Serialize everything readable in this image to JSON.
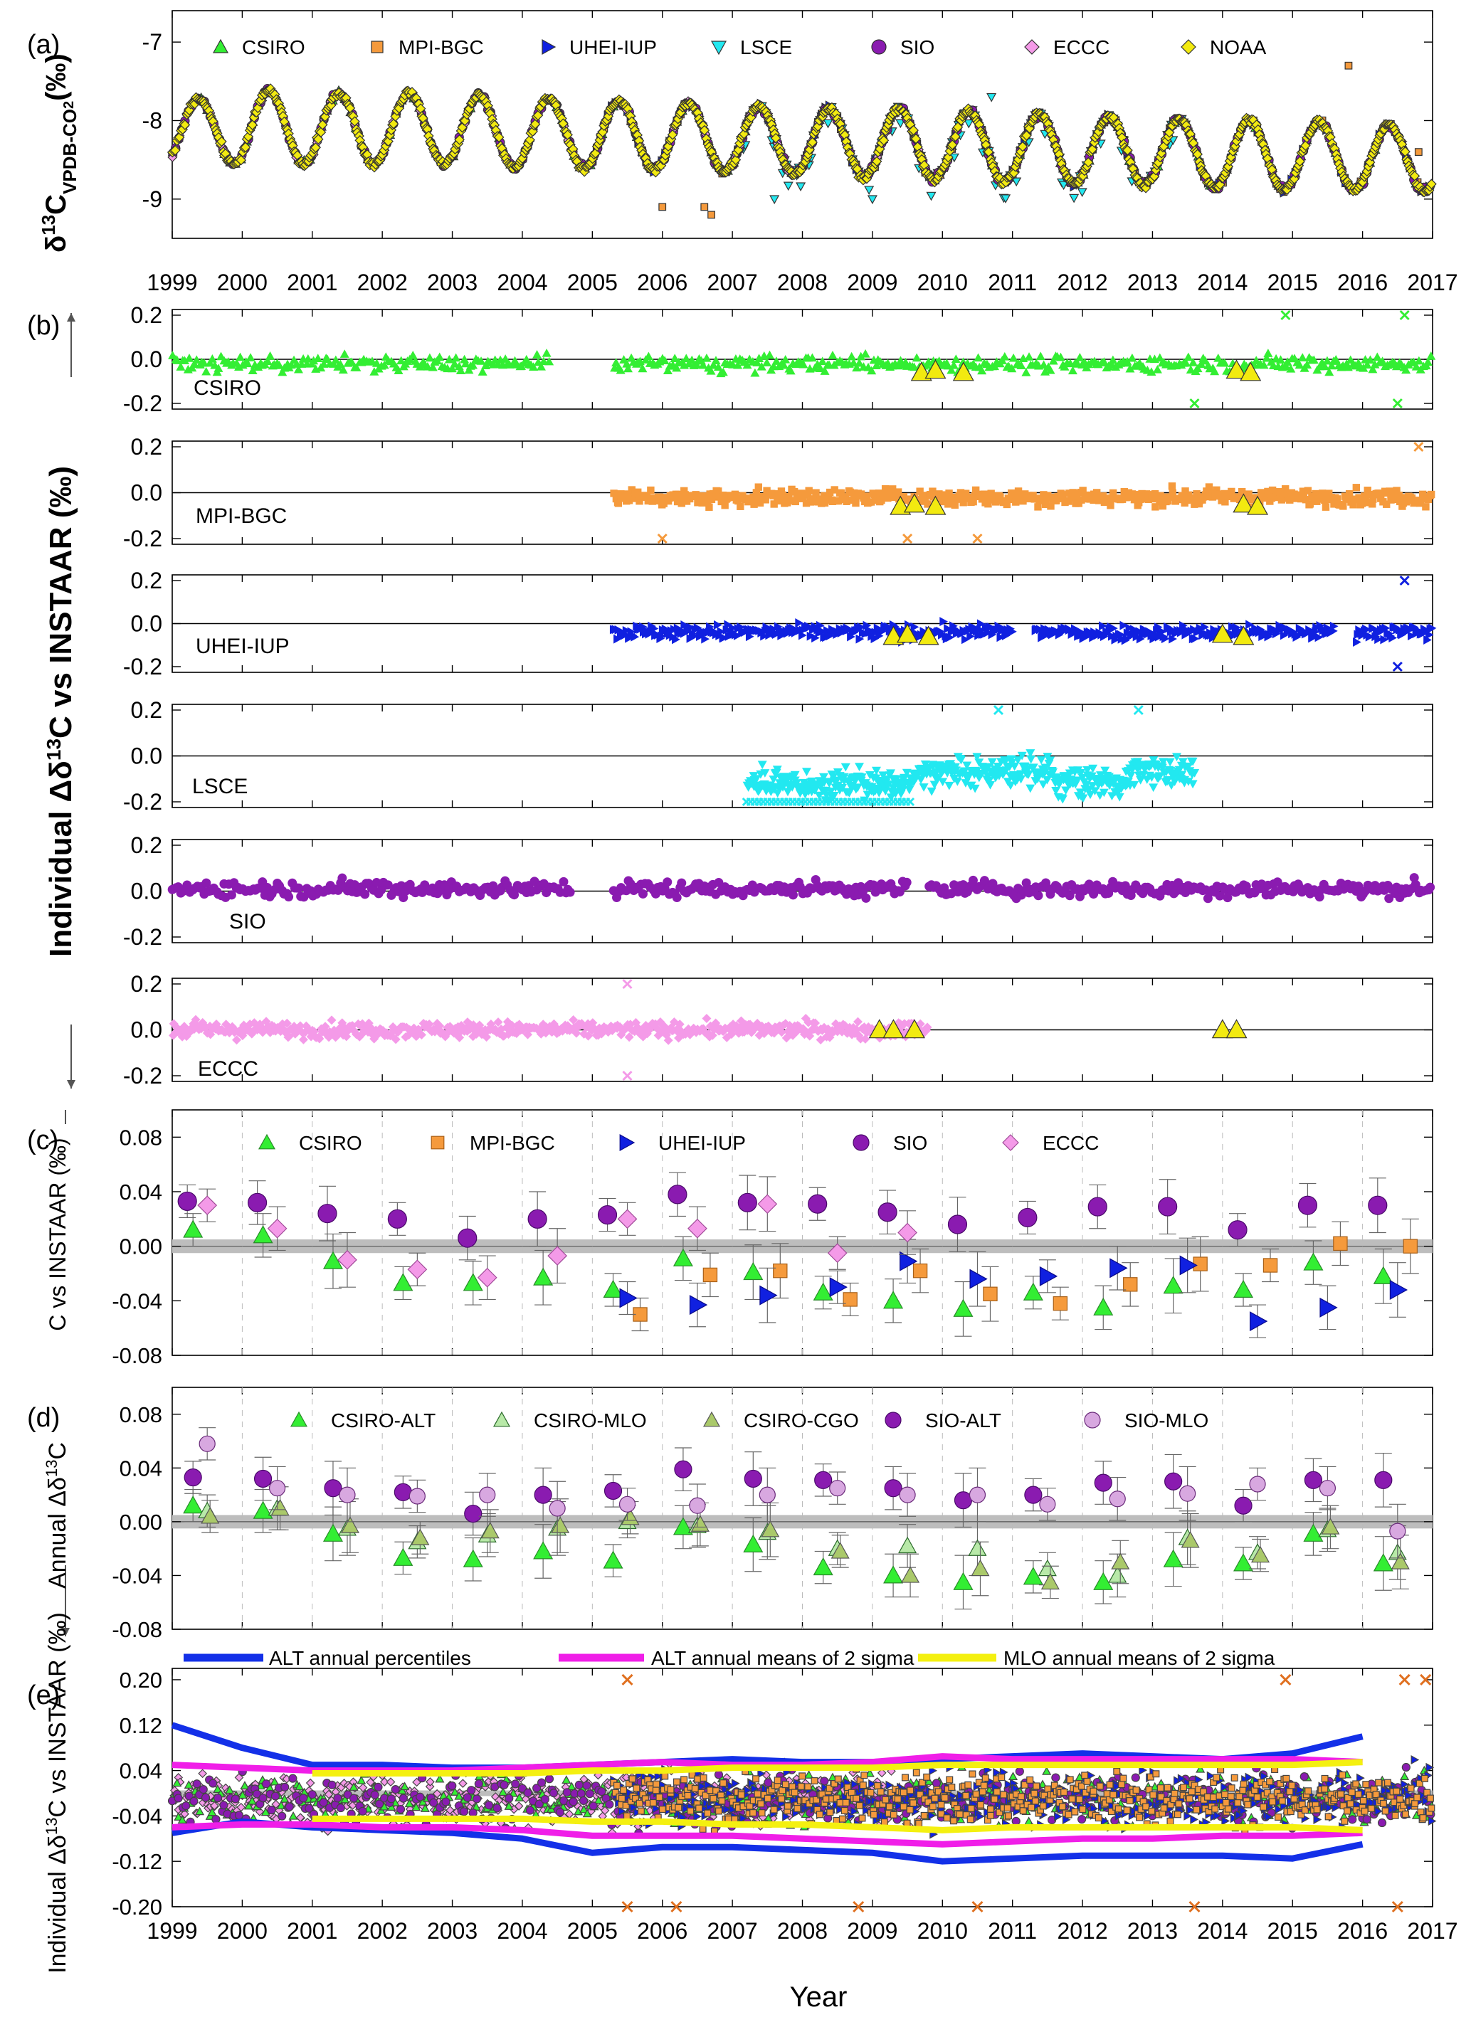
{
  "figure": {
    "year_ticks": [
      "1999",
      "2000",
      "2001",
      "2002",
      "2003",
      "2004",
      "2005",
      "2006",
      "2007",
      "2008",
      "2009",
      "2010",
      "2011",
      "2012",
      "2013",
      "2014",
      "2015",
      "2016",
      "2017"
    ],
    "x_label": "Year",
    "colors": {
      "CSIRO": "#33ee33",
      "MPI-BGC": "#f59a3c",
      "UHEI-IUP": "#1020e0",
      "LSCE": "#22e8f0",
      "SIO": "#8a1bb0",
      "ECCC": "#f49ae8",
      "NOAA": "#f2ea10",
      "INSTAAR": "#f2ea10",
      "ALT_percentiles": "#1330e8",
      "ALT_2sigma": "#f01ee8",
      "MLO_2sigma": "#f4f010",
      "band": "#bdbdbd"
    }
  },
  "panel_a": {
    "label": "(a)",
    "ylabel_main": "δ",
    "ylabel_sup": "13",
    "ylabel_C": "C",
    "ylabel_sub": "VPDB-CO",
    "ylabel_sub2": "2",
    "ylabel_unit": "(‰)",
    "legend": [
      "CSIRO",
      "MPI-BGC",
      "UHEI-IUP",
      "LSCE",
      "SIO",
      "ECCC",
      "NOAA"
    ],
    "y_ticks": [
      "-7",
      "-8",
      "-9"
    ]
  },
  "panel_b": {
    "label": "(b)",
    "ylabel": "Individual Δδ13C vs INSTAAR (‰)",
    "ylabel_pre": "Individual Δδ",
    "ylabel_sup": "13",
    "ylabel_post": "C vs INSTAAR (‰)",
    "subpanels": [
      {
        "name": "CSIRO",
        "y_ticks": [
          "0.2",
          "0.0",
          "-0.2"
        ]
      },
      {
        "name": "MPI-BGC",
        "y_ticks": [
          "0.2",
          "0.0",
          "-0.2"
        ]
      },
      {
        "name": "UHEI-IUP",
        "y_ticks": [
          "0.2",
          "0.0",
          "-0.2"
        ]
      },
      {
        "name": "LSCE",
        "y_ticks": [
          "0.2",
          "0.0",
          "-0.2"
        ]
      },
      {
        "name": "SIO",
        "y_ticks": [
          "0.2",
          "0.0",
          "-0.2"
        ]
      },
      {
        "name": "ECCC",
        "y_ticks": [
          "0.2",
          "0.0",
          "-0.2"
        ]
      }
    ]
  },
  "panel_c": {
    "label": "(c)",
    "ylabel": "Annual Δδ13C vs INSTAAR (‰)",
    "ylabel_post": "C vs INSTAAR (‰)",
    "legend": [
      "CSIRO",
      "MPI-BGC",
      "UHEI-IUP",
      "SIO",
      "ECCC"
    ],
    "y_ticks": [
      "0.08",
      "0.04",
      "0.00",
      "-0.04",
      "-0.08"
    ]
  },
  "panel_d": {
    "label": "(d)",
    "ylabel_pre": "Annual Δδ",
    "ylabel_sup": "13",
    "ylabel_post": "C",
    "legend": [
      "CSIRO-ALT",
      "CSIRO-MLO",
      "CSIRO-CGO",
      "SIO-ALT",
      "SIO-MLO"
    ],
    "y_ticks": [
      "0.08",
      "0.04",
      "0.00",
      "-0.04",
      "-0.08"
    ]
  },
  "panel_e": {
    "label": "(e)",
    "ylabel_pre": "Individual Δδ",
    "ylabel_sup": "13",
    "ylabel_post": "C vs INSTAAR (‰)",
    "legend": [
      "ALT annual percentiles",
      "ALT annual means of 2 sigma",
      "MLO annual means of 2 sigma"
    ],
    "y_ticks": [
      "0.20",
      "0.12",
      "0.04",
      "-0.04",
      "-0.12",
      "-0.20"
    ]
  },
  "chart_data": [
    {
      "type": "scatter",
      "panel": "a",
      "ylim": [
        -9.5,
        -6.6
      ],
      "xlim": [
        1999,
        2017
      ],
      "series_note": "seasonal cycle, annual minimum near late summer; values approximate",
      "series": [
        {
          "name": "NOAA",
          "seasonal_max": [
            -7.72,
            -7.62,
            -7.65,
            -7.65,
            -7.68,
            -7.72,
            -7.75,
            -7.78,
            -7.82,
            -7.85,
            -7.85,
            -7.88,
            -7.92,
            -7.95,
            -7.98,
            -8.0,
            -8.02,
            -8.05
          ],
          "seasonal_min": [
            -8.55,
            -8.55,
            -8.55,
            -8.55,
            -8.6,
            -8.6,
            -8.62,
            -8.65,
            -8.68,
            -8.72,
            -8.75,
            -8.78,
            -8.8,
            -8.82,
            -8.85,
            -8.88,
            -8.88,
            -8.9
          ]
        }
      ]
    },
    {
      "type": "scatter",
      "panel": "c",
      "x": [
        1999.5,
        2000.5,
        2001.5,
        2002.5,
        2003.5,
        2004.5,
        2005.5,
        2006.5,
        2007.5,
        2008.5,
        2009.5,
        2010.5,
        2011.5,
        2012.5,
        2013.5,
        2014.5,
        2015.5,
        2016.5
      ],
      "ylim": [
        -0.08,
        0.1
      ],
      "series": [
        {
          "name": "CSIRO",
          "values": [
            0.012,
            0.008,
            -0.011,
            -0.027,
            -0.027,
            -0.023,
            -0.032,
            -0.009,
            -0.019,
            -0.034,
            -0.04,
            -0.046,
            -0.034,
            -0.045,
            -0.029,
            -0.032,
            -0.012,
            -0.022
          ]
        },
        {
          "name": "MPI-BGC",
          "values": [
            null,
            null,
            null,
            null,
            null,
            null,
            -0.05,
            -0.021,
            -0.018,
            -0.039,
            -0.018,
            -0.035,
            -0.042,
            -0.028,
            -0.013,
            -0.014,
            0.002,
            0.0
          ]
        },
        {
          "name": "UHEI-IUP",
          "values": [
            null,
            null,
            null,
            null,
            null,
            null,
            -0.038,
            -0.043,
            -0.036,
            -0.03,
            -0.011,
            -0.024,
            -0.022,
            -0.016,
            -0.014,
            -0.055,
            -0.045,
            -0.032
          ]
        },
        {
          "name": "SIO",
          "values": [
            0.033,
            0.032,
            0.024,
            0.02,
            0.006,
            0.02,
            0.023,
            0.038,
            0.032,
            0.031,
            0.025,
            0.016,
            0.021,
            0.029,
            0.029,
            0.012,
            0.03,
            0.03
          ]
        },
        {
          "name": "ECCC",
          "values": [
            0.03,
            0.013,
            -0.01,
            -0.017,
            -0.023,
            -0.007,
            0.02,
            0.013,
            0.031,
            -0.005,
            0.01,
            null,
            null,
            null,
            null,
            null,
            null,
            null
          ]
        }
      ]
    },
    {
      "type": "scatter",
      "panel": "d",
      "x": [
        1999.5,
        2000.5,
        2001.5,
        2002.5,
        2003.5,
        2004.5,
        2005.5,
        2006.5,
        2007.5,
        2008.5,
        2009.5,
        2010.5,
        2011.5,
        2012.5,
        2013.5,
        2014.5,
        2015.5,
        2016.5
      ],
      "ylim": [
        -0.08,
        0.1
      ],
      "series": [
        {
          "name": "CSIRO-ALT",
          "values": [
            0.012,
            0.008,
            -0.009,
            -0.027,
            -0.028,
            -0.022,
            -0.029,
            -0.004,
            -0.017,
            -0.034,
            -0.04,
            -0.045,
            -0.041,
            -0.045,
            -0.028,
            -0.031,
            -0.009,
            -0.031
          ]
        },
        {
          "name": "CSIRO-MLO",
          "values": [
            0.008,
            0.01,
            -0.005,
            -0.015,
            -0.01,
            -0.005,
            0.0,
            -0.003,
            -0.008,
            -0.02,
            -0.018,
            -0.02,
            -0.035,
            -0.04,
            -0.012,
            -0.023,
            -0.006,
            -0.023
          ]
        },
        {
          "name": "CSIRO-CGO",
          "values": [
            0.004,
            0.01,
            -0.003,
            -0.012,
            -0.007,
            -0.003,
            0.003,
            -0.002,
            -0.006,
            -0.022,
            -0.04,
            -0.035,
            -0.045,
            -0.03,
            -0.014,
            -0.025,
            -0.004,
            -0.03
          ]
        },
        {
          "name": "SIO-ALT",
          "values": [
            0.033,
            0.032,
            0.025,
            0.022,
            0.006,
            0.02,
            0.023,
            0.039,
            0.032,
            0.031,
            0.025,
            0.016,
            0.02,
            0.029,
            0.03,
            0.012,
            0.031,
            0.031
          ]
        },
        {
          "name": "SIO-MLO",
          "values": [
            0.058,
            0.025,
            0.02,
            0.019,
            0.02,
            0.01,
            0.013,
            0.012,
            0.02,
            0.025,
            0.02,
            0.02,
            0.013,
            0.017,
            0.021,
            0.028,
            0.025,
            -0.007
          ]
        }
      ]
    },
    {
      "type": "line",
      "panel": "e",
      "x": [
        1999,
        2000,
        2001,
        2002,
        2003,
        2004,
        2005,
        2006,
        2007,
        2008,
        2009,
        2010,
        2011,
        2012,
        2013,
        2014,
        2015,
        2016
      ],
      "ylim": [
        -0.2,
        0.22
      ],
      "series": [
        {
          "name": "ALT annual percentiles",
          "upper": [
            0.12,
            0.08,
            0.05,
            0.05,
            0.045,
            0.045,
            0.05,
            0.055,
            0.06,
            0.055,
            0.055,
            0.06,
            0.065,
            0.07,
            0.065,
            0.06,
            0.07,
            0.1
          ],
          "lower": [
            -0.07,
            -0.05,
            -0.06,
            -0.065,
            -0.07,
            -0.08,
            -0.105,
            -0.095,
            -0.095,
            -0.1,
            -0.105,
            -0.12,
            -0.115,
            -0.11,
            -0.11,
            -0.11,
            -0.115,
            -0.09
          ]
        },
        {
          "name": "ALT annual means of 2 sigma",
          "upper": [
            0.05,
            0.045,
            0.04,
            0.04,
            0.04,
            0.045,
            0.05,
            0.055,
            0.05,
            0.05,
            0.055,
            0.065,
            0.06,
            0.06,
            0.06,
            0.06,
            0.06,
            0.055
          ],
          "lower": [
            -0.06,
            -0.055,
            -0.055,
            -0.06,
            -0.06,
            -0.065,
            -0.075,
            -0.075,
            -0.075,
            -0.08,
            -0.085,
            -0.09,
            -0.085,
            -0.08,
            -0.08,
            -0.075,
            -0.075,
            -0.07
          ]
        },
        {
          "name": "MLO annual means of 2 sigma",
          "upper": [
            null,
            null,
            0.035,
            0.035,
            0.035,
            0.035,
            0.04,
            0.04,
            0.045,
            0.045,
            0.045,
            0.05,
            0.05,
            0.05,
            0.05,
            0.05,
            0.05,
            0.055
          ],
          "lower": [
            null,
            null,
            -0.045,
            -0.045,
            -0.045,
            -0.045,
            -0.05,
            -0.05,
            -0.055,
            -0.055,
            -0.06,
            -0.065,
            -0.06,
            -0.06,
            -0.06,
            -0.06,
            -0.06,
            -0.065
          ]
        }
      ]
    }
  ]
}
